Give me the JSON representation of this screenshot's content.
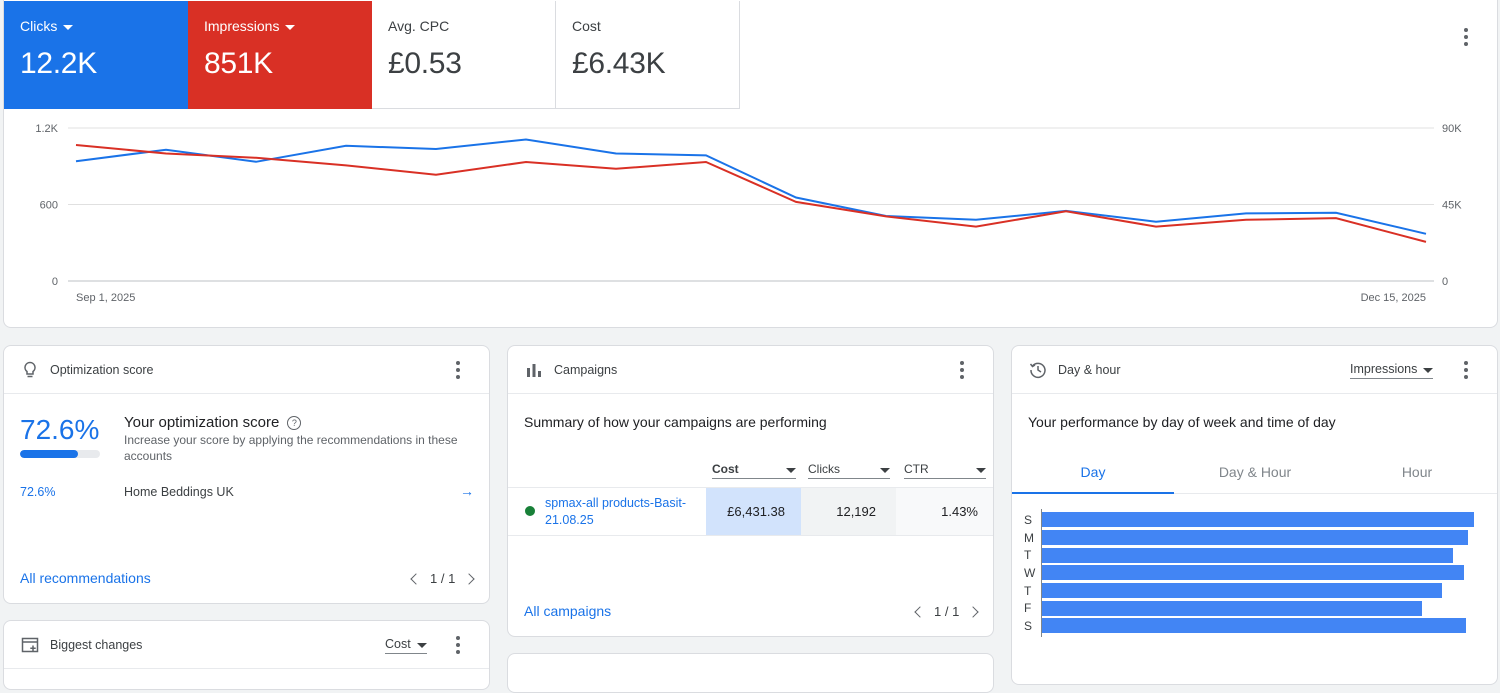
{
  "overview": {
    "metrics": [
      {
        "label": "Clicks",
        "value": "12.2K",
        "color": "#1a73e8",
        "selected": true
      },
      {
        "label": "Impressions",
        "value": "851K",
        "color": "#d93025",
        "selected": true
      },
      {
        "label": "Avg. CPC",
        "value": "£0.53",
        "selected": false
      },
      {
        "label": "Cost",
        "value": "£6.43K",
        "selected": false
      }
    ]
  },
  "chart_data": {
    "type": "line",
    "title": "",
    "x_start_label": "Sep 1, 2025",
    "x_end_label": "Dec 15, 2025",
    "y_left_ticks": [
      "1.2K",
      "600",
      "0"
    ],
    "y_right_ticks": [
      "90K",
      "45K",
      "0"
    ],
    "ylim_left": [
      0,
      1200
    ],
    "ylim_right": [
      0,
      90000
    ],
    "series": [
      {
        "name": "Clicks",
        "color": "#1a73e8",
        "axis": "left",
        "values": [
          940,
          1030,
          935,
          1060,
          1035,
          1110,
          1000,
          985,
          655,
          510,
          480,
          550,
          465,
          530,
          535,
          370
        ]
      },
      {
        "name": "Impressions",
        "color": "#d93025",
        "axis": "right",
        "values": [
          80000,
          75000,
          72500,
          68000,
          62500,
          70000,
          66000,
          70000,
          46500,
          38000,
          32000,
          41000,
          32000,
          36000,
          37000,
          23000
        ]
      }
    ]
  },
  "optimization": {
    "title": "Optimization score",
    "score": "72.6%",
    "score_fraction": 0.726,
    "heading": "Your optimization score",
    "description": "Increase your score by applying the recommendations in these accounts",
    "row_score": "72.6%",
    "row_account": "Home Beddings UK",
    "all_link": "All recommendations",
    "pager": "1 / 1"
  },
  "campaigns": {
    "title": "Campaigns",
    "summary": "Summary of how your campaigns are performing",
    "columns": [
      "Cost",
      "Clicks",
      "CTR"
    ],
    "row": {
      "name": "spmax-all products-Basit-21.08.25",
      "cost": "£6,431.38",
      "clicks": "12,192",
      "ctr": "1.43%"
    },
    "all_link": "All campaigns",
    "pager": "1 / 1"
  },
  "day_hour": {
    "title": "Day & hour",
    "metric_select": "Impressions",
    "summary": "Your performance by day of week and time of day",
    "tabs": [
      "Day",
      "Day & Hour",
      "Hour"
    ],
    "active_tab": 0,
    "days": [
      "S",
      "M",
      "T",
      "W",
      "T",
      "F",
      "S"
    ],
    "values": [
      1.0,
      0.986,
      0.951,
      0.977,
      0.925,
      0.88,
      0.982
    ],
    "bar_color": "#4285f4"
  },
  "biggest_changes": {
    "title": "Biggest changes",
    "metric_select": "Cost"
  }
}
